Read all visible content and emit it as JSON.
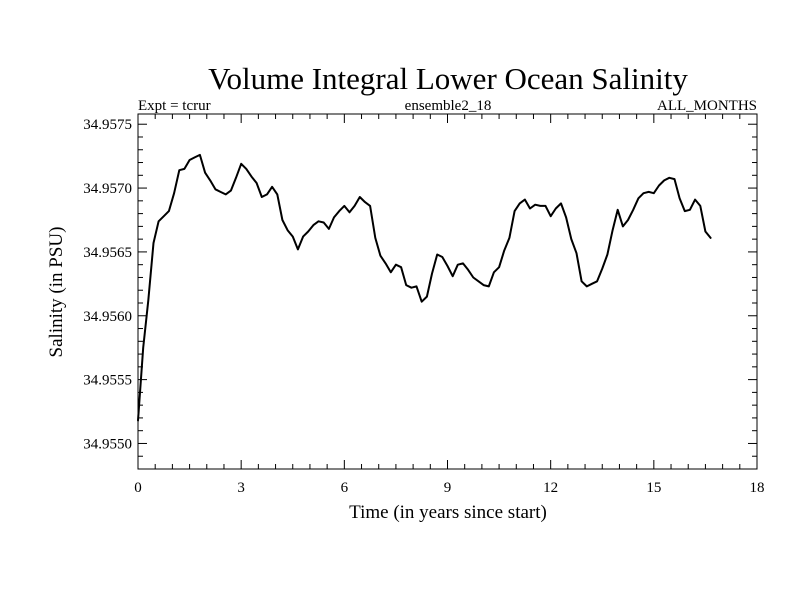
{
  "chart_data": {
    "type": "line",
    "title": "Volume Integral Lower Ocean Salinity",
    "header_left": "Expt = tcrur",
    "header_center": "ensemble2_18",
    "header_right": "ALL_MONTHS",
    "xlabel": "Time (in years since start)",
    "ylabel": "Salinity (in PSU)",
    "xlim": [
      0,
      18
    ],
    "ylim": [
      34.9548,
      34.95758
    ],
    "x_ticks": [
      "0",
      "3",
      "6",
      "9",
      "12",
      "15",
      "18"
    ],
    "y_ticks": [
      "34.9550",
      "34.9555",
      "34.9560",
      "34.9565",
      "34.9570",
      "34.9575"
    ],
    "grid": false,
    "series": [
      {
        "x": [
          0.0,
          0.15,
          0.3,
          0.45,
          0.6,
          0.75,
          0.9,
          1.05,
          1.2,
          1.35,
          1.5,
          1.65,
          1.8,
          1.95,
          2.1,
          2.25,
          2.4,
          2.55,
          2.7,
          2.85,
          3.0,
          3.15,
          3.3,
          3.45,
          3.6,
          3.75,
          3.9,
          4.05,
          4.2,
          4.35,
          4.5,
          4.65,
          4.8,
          4.95,
          5.1,
          5.25,
          5.4,
          5.55,
          5.7,
          5.85,
          6.0,
          6.15,
          6.3,
          6.45,
          6.6,
          6.75,
          6.9,
          7.05,
          7.2,
          7.35,
          7.5,
          7.65,
          7.8,
          7.95,
          8.1,
          8.25,
          8.4,
          8.55,
          8.7,
          8.85,
          9.0,
          9.15,
          9.3,
          9.45,
          9.6,
          9.75,
          9.9,
          10.05,
          10.2,
          10.35,
          10.5,
          10.65,
          10.8,
          10.95,
          11.1,
          11.25,
          11.4,
          11.55,
          11.7,
          11.85,
          12.0,
          12.15,
          12.3,
          12.45,
          12.6,
          12.75,
          12.9,
          13.05,
          13.2,
          13.35,
          13.5,
          13.65,
          13.8,
          13.95,
          14.1,
          14.25,
          14.4,
          14.55,
          14.7,
          14.85,
          15.0,
          15.15,
          15.3,
          15.45,
          15.6,
          15.75,
          15.9,
          16.05,
          16.2,
          16.35,
          16.5,
          16.65
        ],
        "values": [
          34.95518,
          34.95575,
          34.95612,
          34.95657,
          34.95674,
          34.95678,
          34.95682,
          34.95696,
          34.95714,
          34.95715,
          34.95722,
          34.95724,
          34.95726,
          34.95712,
          34.95706,
          34.95699,
          34.95697,
          34.95695,
          34.95698,
          34.95708,
          34.95719,
          34.95715,
          34.95709,
          34.95704,
          34.95693,
          34.95695,
          34.95701,
          34.95695,
          34.95675,
          34.95667,
          34.95662,
          34.95652,
          34.95662,
          34.95666,
          34.95671,
          34.95674,
          34.95673,
          34.95668,
          34.95677,
          34.95682,
          34.95686,
          34.95681,
          34.95686,
          34.95693,
          34.95689,
          34.95686,
          34.95661,
          34.95647,
          34.95641,
          34.95634,
          34.9564,
          34.95638,
          34.95624,
          34.95622,
          34.95623,
          34.95611,
          34.95615,
          34.95633,
          34.95648,
          34.95646,
          34.95639,
          34.95631,
          34.9564,
          34.95641,
          34.95636,
          34.9563,
          34.95627,
          34.95624,
          34.95623,
          34.95634,
          34.95638,
          34.95651,
          34.95661,
          34.95682,
          34.95688,
          34.95691,
          34.95684,
          34.95687,
          34.95686,
          34.95686,
          34.95678,
          34.95684,
          34.95688,
          34.95677,
          34.9566,
          34.95649,
          34.95627,
          34.95623,
          34.95625,
          34.95627,
          34.95637,
          34.95648,
          34.95667,
          34.95683,
          34.9567,
          34.95675,
          34.95683,
          34.95692,
          34.95696,
          34.95697,
          34.95696,
          34.95702,
          34.95706,
          34.95708,
          34.95707,
          34.95692,
          34.95682,
          34.95683,
          34.95691,
          34.95686,
          34.95666,
          34.95661
        ]
      }
    ]
  }
}
